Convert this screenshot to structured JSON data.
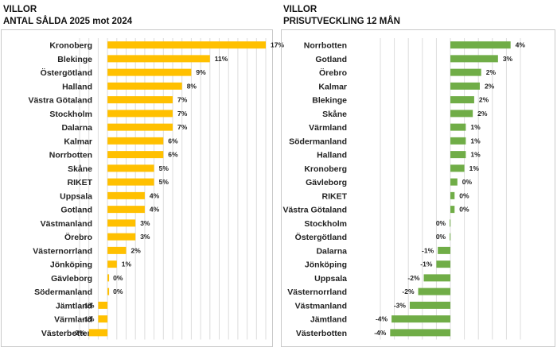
{
  "chart_data": [
    {
      "type": "bar",
      "orientation": "horizontal",
      "title": "VILLOR",
      "subtitle": "ANTAL SÅLDA 2025 mot 2024",
      "color": "#ffc000",
      "grid": true,
      "xlim": [
        -3,
        17
      ],
      "categories": [
        "Kronoberg",
        "Blekinge",
        "Östergötland",
        "Halland",
        "Västra Götaland",
        "Stockholm",
        "Dalarna",
        "Kalmar",
        "Norrbotten",
        "Skåne",
        "RIKET",
        "Uppsala",
        "Gotland",
        "Västmanland",
        "Örebro",
        "Västernorrland",
        "Jönköping",
        "Gävleborg",
        "Södermanland",
        "Jämtland",
        "Värmland",
        "Västerbotten"
      ],
      "values": [
        17,
        11,
        9,
        8,
        7,
        7,
        7,
        6,
        6,
        5,
        5,
        4,
        4,
        3,
        3,
        2,
        1,
        0,
        0,
        -1,
        -1,
        -2
      ],
      "labels": [
        "17%",
        "11%",
        "9%",
        "8%",
        "7%",
        "7%",
        "7%",
        "6%",
        "6%",
        "5%",
        "5%",
        "4%",
        "4%",
        "3%",
        "3%",
        "2%",
        "1%",
        "0%",
        "0%",
        "-1%",
        "-1%",
        "-2%"
      ]
    },
    {
      "type": "bar",
      "orientation": "horizontal",
      "title": "VILLOR",
      "subtitle": "PRISUTVECKLING 12 MÅN",
      "color": "#70ad47",
      "grid": true,
      "xlim": [
        -5,
        5
      ],
      "categories": [
        "Norrbotten",
        "Gotland",
        "Örebro",
        "Kalmar",
        "Blekinge",
        "Skåne",
        "Värmland",
        "Södermanland",
        "Halland",
        "Kronoberg",
        "Gävleborg",
        "RIKET",
        "Västra Götaland",
        "Stockholm",
        "Östergötland",
        "Dalarna",
        "Jönköping",
        "Uppsala",
        "Västernorrland",
        "Västmanland",
        "Jämtland",
        "Västerbotten"
      ],
      "values": [
        4.3,
        3.4,
        2.2,
        2.1,
        1.7,
        1.6,
        1.1,
        1.1,
        1.1,
        1.0,
        0.5,
        0.3,
        0.3,
        -0.05,
        -0.05,
        -0.9,
        -1.0,
        -1.9,
        -2.3,
        -2.9,
        -4.2,
        -4.3
      ],
      "labels": [
        "4%",
        "3%",
        "2%",
        "2%",
        "2%",
        "2%",
        "1%",
        "1%",
        "1%",
        "1%",
        "0%",
        "0%",
        "0%",
        "0%",
        "0%",
        "-1%",
        "-1%",
        "-2%",
        "-2%",
        "-3%",
        "-4%",
        "-4%"
      ]
    }
  ]
}
